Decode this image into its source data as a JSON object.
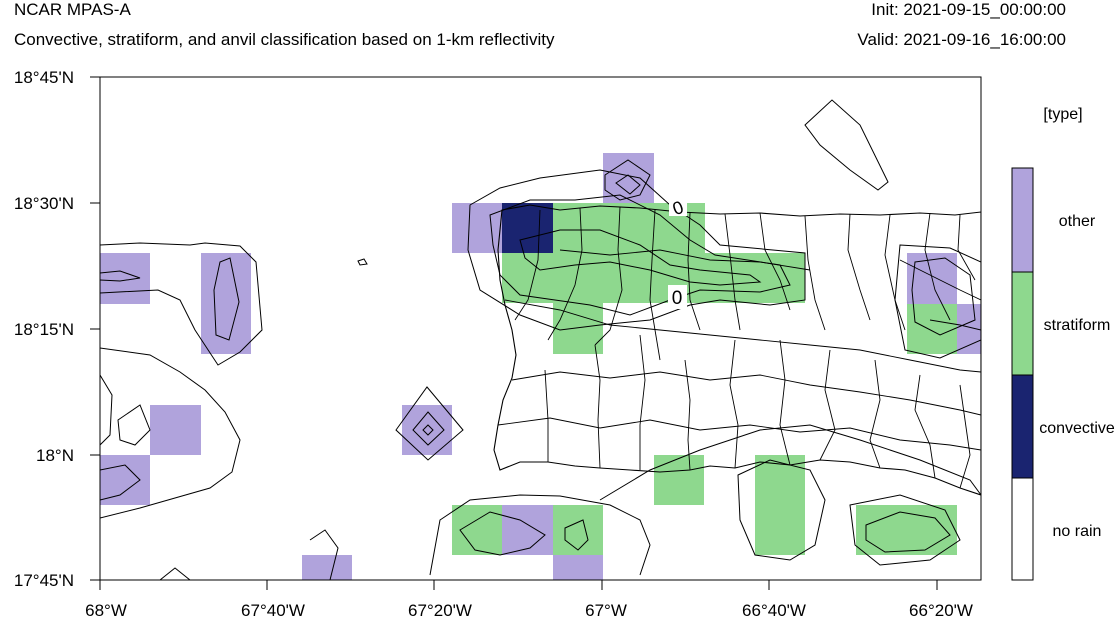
{
  "header": {
    "title": "NCAR MPAS-A",
    "subtitle": "Convective, stratiform, and anvil classification based on 1-km reflectivity",
    "init": "Init: 2021-09-15_00:00:00",
    "valid": "Valid: 2021-09-16_16:00:00"
  },
  "map": {
    "lat_ticks": [
      "18°45'N",
      "18°30'N",
      "18°15'N",
      "18°N",
      "17°45'N"
    ],
    "lon_ticks": [
      "68°W",
      "67°40'W",
      "67°20'W",
      "67°W",
      "66°40'W",
      "66°20'W"
    ],
    "contour_labels": [
      "0",
      "0"
    ]
  },
  "legend": {
    "title": "[type]",
    "classes": [
      {
        "label": "other",
        "color": "#b0a3dc"
      },
      {
        "label": "stratiform",
        "color": "#8ed88e"
      },
      {
        "label": "convective",
        "color": "#1a2470"
      },
      {
        "label": "no rain",
        "color": "#ffffff"
      }
    ]
  },
  "colors": {
    "other": "#b0a3dc",
    "stratiform": "#8ed88e",
    "convective": "#1a2470",
    "no_rain": "#ffffff"
  }
}
